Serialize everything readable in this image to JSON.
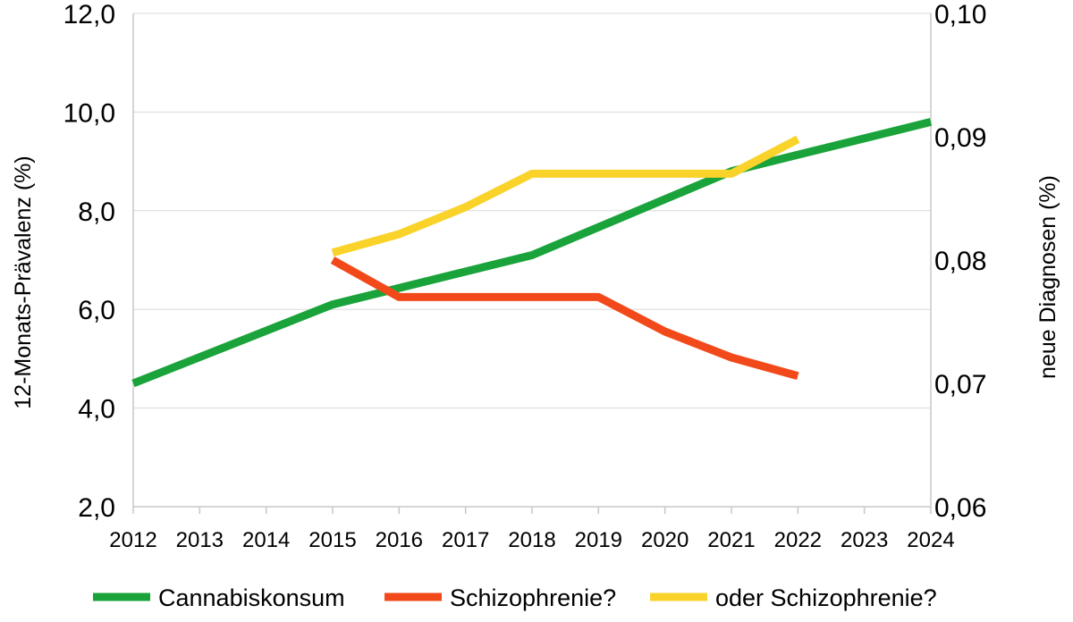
{
  "chart_data": {
    "type": "line",
    "title": "",
    "x": [
      2012,
      2013,
      2014,
      2015,
      2016,
      2017,
      2018,
      2019,
      2020,
      2021,
      2022,
      2023,
      2024
    ],
    "x_tick_labels": [
      "2012",
      "2013",
      "2014",
      "2015",
      "2016",
      "2017",
      "2018",
      "2019",
      "2020",
      "2021",
      "2022",
      "2023",
      "2024"
    ],
    "y_left": {
      "label": "12-Monats-Prävalenz (%)",
      "lim": [
        2.0,
        12.0
      ],
      "ticks": [
        2.0,
        4.0,
        6.0,
        8.0,
        10.0,
        12.0
      ],
      "tick_labels": [
        "2,0",
        "4,0",
        "6,0",
        "8,0",
        "10,0",
        "12,0"
      ]
    },
    "y_right": {
      "label": "neue Diagnosen (%)",
      "lim": [
        0.06,
        0.1
      ],
      "ticks": [
        0.06,
        0.07,
        0.08,
        0.09,
        0.1
      ],
      "tick_labels": [
        "0,06",
        "0,07",
        "0,08",
        "0,09",
        "0,10"
      ]
    },
    "grid": true,
    "legend_position": "bottom",
    "series": [
      {
        "name": "Cannabiskonsum",
        "axis": "left",
        "color": "#1aa33a",
        "points": [
          [
            2012,
            4.5
          ],
          [
            2015,
            6.1
          ],
          [
            2018,
            7.1
          ],
          [
            2021,
            8.8
          ],
          [
            2024,
            9.8
          ]
        ]
      },
      {
        "name": "Schizophrenie?",
        "axis": "right",
        "color": "#f2491b",
        "points": [
          [
            2015,
            0.08
          ],
          [
            2016,
            0.077
          ],
          [
            2019,
            0.077
          ],
          [
            2020,
            0.0742
          ],
          [
            2021,
            0.0721
          ],
          [
            2022,
            0.0706
          ]
        ]
      },
      {
        "name": "oder Schizophrenie?",
        "axis": "right",
        "color": "#f9d32a",
        "points": [
          [
            2015,
            0.0806
          ],
          [
            2016,
            0.0821
          ],
          [
            2017,
            0.0843
          ],
          [
            2018,
            0.087
          ],
          [
            2021,
            0.087
          ],
          [
            2022,
            0.0898
          ]
        ]
      }
    ]
  }
}
